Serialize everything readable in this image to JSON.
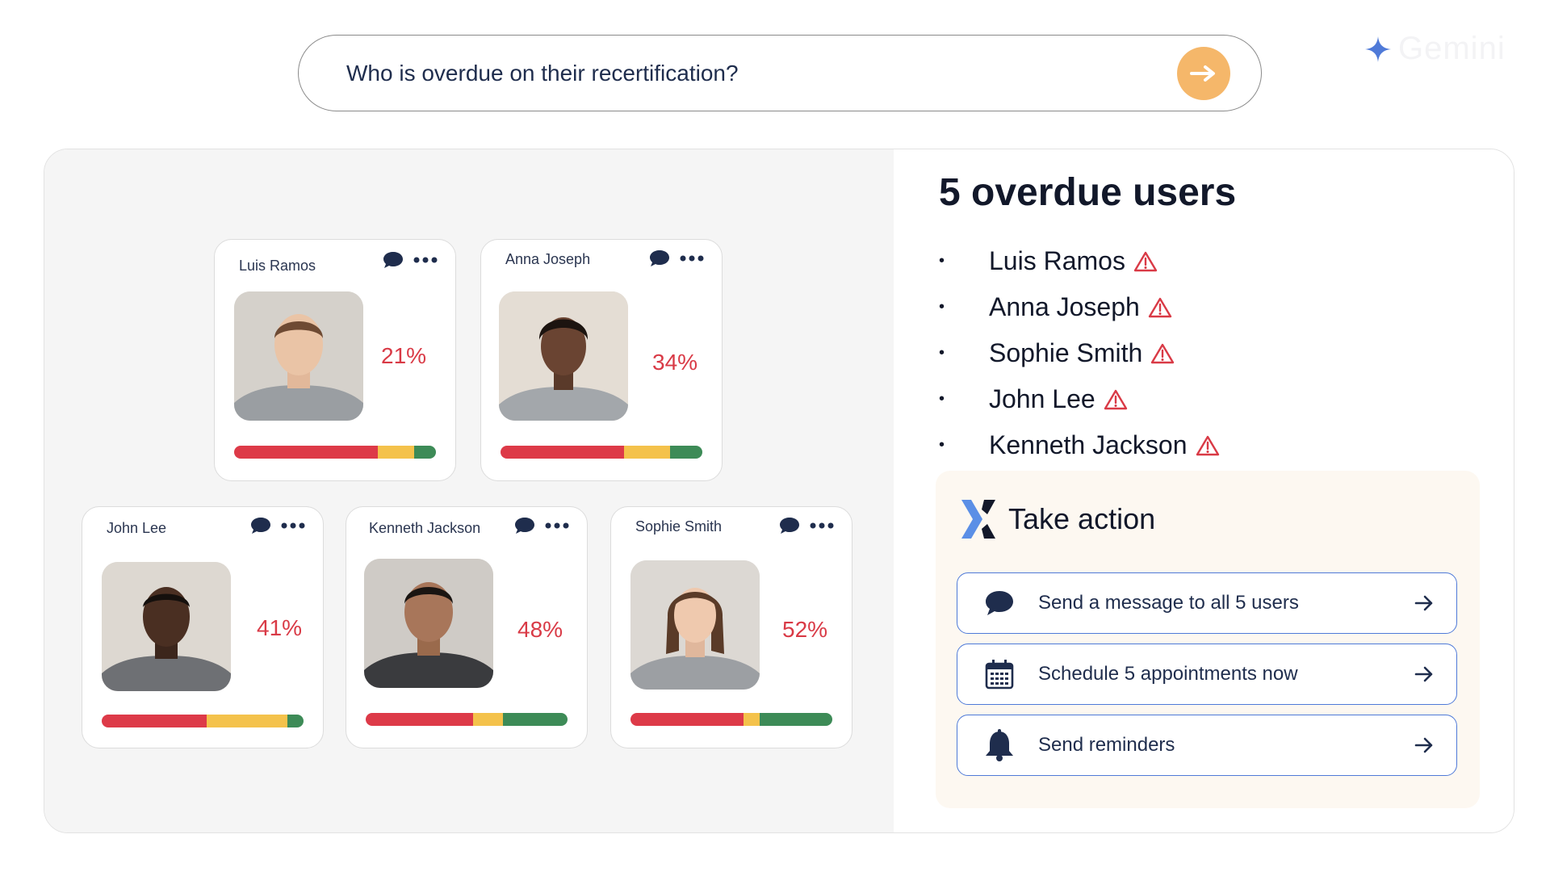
{
  "search": {
    "query": "Who is overdue on their recertification?"
  },
  "brand": {
    "name": "Gemini"
  },
  "cards": [
    {
      "name": "Luis Ramos",
      "percent": "21%",
      "bar": [
        0.71,
        0.18,
        0.11
      ]
    },
    {
      "name": "Anna Joseph",
      "percent": "34%",
      "bar": [
        0.61,
        0.23,
        0.16
      ]
    },
    {
      "name": "John Lee",
      "percent": "41%",
      "bar": [
        0.52,
        0.4,
        0.08
      ]
    },
    {
      "name": "Kenneth Jackson",
      "percent": "48%",
      "bar": [
        0.53,
        0.15,
        0.32
      ]
    },
    {
      "name": "Sophie Smith",
      "percent": "52%",
      "bar": [
        0.56,
        0.08,
        0.36
      ]
    }
  ],
  "overdue": {
    "heading": "5 overdue users",
    "users": [
      "Luis Ramos",
      "Anna Joseph",
      "Sophie Smith",
      "John Lee",
      "Kenneth Jackson"
    ]
  },
  "actions": {
    "title": "Take action",
    "buttons": [
      {
        "label": "Send a message to all 5 users",
        "icon": "chat-bubble-icon"
      },
      {
        "label": "Schedule 5 appointments now",
        "icon": "calendar-icon"
      },
      {
        "label": "Send reminders",
        "icon": "bell-icon"
      }
    ]
  },
  "colors": {
    "accent": "#f5b76a",
    "danger": "#d93a46",
    "bar_red": "#dd3a48",
    "bar_yellow": "#f4c24b",
    "bar_green": "#3d8b57",
    "button_border": "#4f7ad8"
  }
}
